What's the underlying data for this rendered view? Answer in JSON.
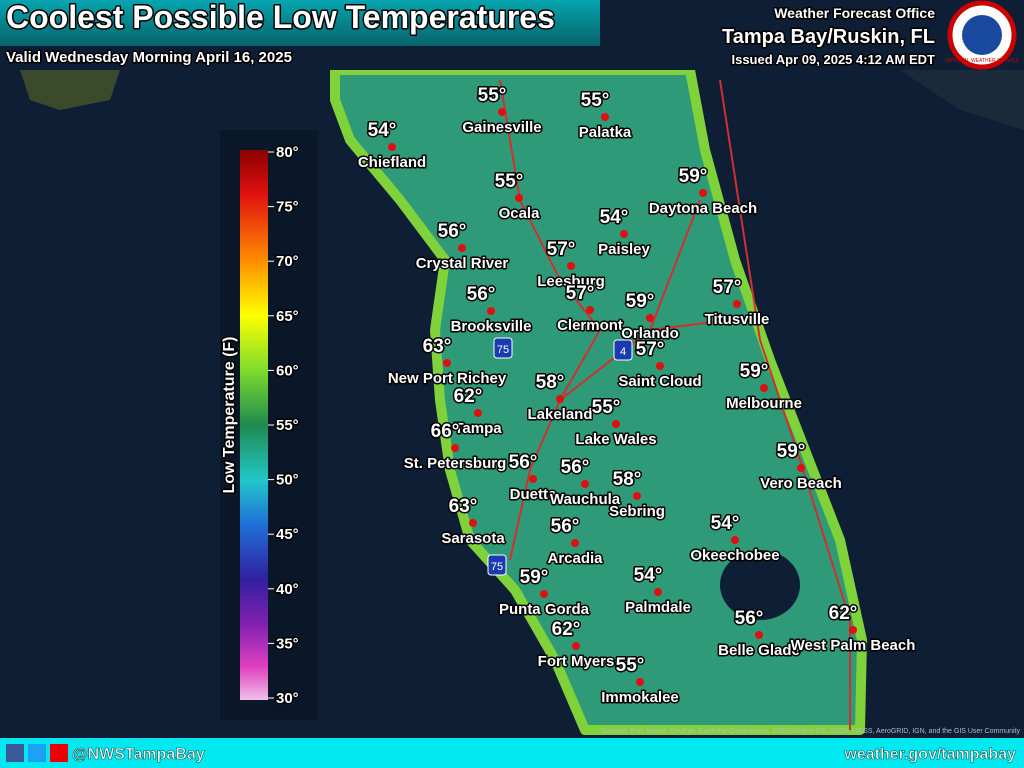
{
  "header": {
    "title": "Coolest Possible Low Temperatures",
    "subtitle": "Valid Wednesday Morning April 16, 2025",
    "office_line": "Weather Forecast Office",
    "office": "Tampa Bay/Ruskin, FL",
    "issued": "Issued Apr 09, 2025 4:12 AM EDT",
    "logo": "NATIONAL WEATHER SERVICE"
  },
  "legend": {
    "title": "Low Temperature (F)",
    "ticks": [
      "80°",
      "75°",
      "70°",
      "65°",
      "60°",
      "55°",
      "50°",
      "45°",
      "40°",
      "35°",
      "30°"
    ]
  },
  "cities": [
    {
      "name": "Chiefland",
      "temp": "54°"
    },
    {
      "name": "Gainesville",
      "temp": "55°"
    },
    {
      "name": "Palatka",
      "temp": "55°"
    },
    {
      "name": "Ocala",
      "temp": "55°"
    },
    {
      "name": "Daytona Beach",
      "temp": "59°"
    },
    {
      "name": "Paisley",
      "temp": "54°"
    },
    {
      "name": "Crystal River",
      "temp": "56°"
    },
    {
      "name": "Leesburg",
      "temp": "57°"
    },
    {
      "name": "Brooksville",
      "temp": "56°"
    },
    {
      "name": "Clermont",
      "temp": "57°"
    },
    {
      "name": "Orlando",
      "temp": "59°"
    },
    {
      "name": "Titusville",
      "temp": "57°"
    },
    {
      "name": "New Port Richey",
      "temp": "63°"
    },
    {
      "name": "Saint Cloud",
      "temp": "57°"
    },
    {
      "name": "Melbourne",
      "temp": "59°"
    },
    {
      "name": "Lakeland",
      "temp": "58°"
    },
    {
      "name": "Tampa",
      "temp": "62°"
    },
    {
      "name": "Lake Wales",
      "temp": "55°"
    },
    {
      "name": "St. Petersburg",
      "temp": "66°"
    },
    {
      "name": "Vero Beach",
      "temp": "59°"
    },
    {
      "name": "Duette",
      "temp": "56°"
    },
    {
      "name": "Wauchula",
      "temp": "56°"
    },
    {
      "name": "Sebring",
      "temp": "58°"
    },
    {
      "name": "Sarasota",
      "temp": "63°"
    },
    {
      "name": "Okeechobee",
      "temp": "54°"
    },
    {
      "name": "Arcadia",
      "temp": "56°"
    },
    {
      "name": "Punta Gorda",
      "temp": "59°"
    },
    {
      "name": "Palmdale",
      "temp": "54°"
    },
    {
      "name": "Belle Glade",
      "temp": "56°"
    },
    {
      "name": "West Palm Beach",
      "temp": "62°"
    },
    {
      "name": "Fort Myers",
      "temp": "62°"
    },
    {
      "name": "Immokalee",
      "temp": "55°"
    }
  ],
  "shields": [
    "75",
    "4",
    "75"
  ],
  "attribution": "Sources: Esri, Maxar, GeoEye, Earthstar Geographics, CNES/Airbus DS, USDA, USGS, AeroGRID, IGN, and the GIS User Community",
  "footer": {
    "social": "@NWSTampaBay",
    "url": "weather.gov/tampabay"
  }
}
